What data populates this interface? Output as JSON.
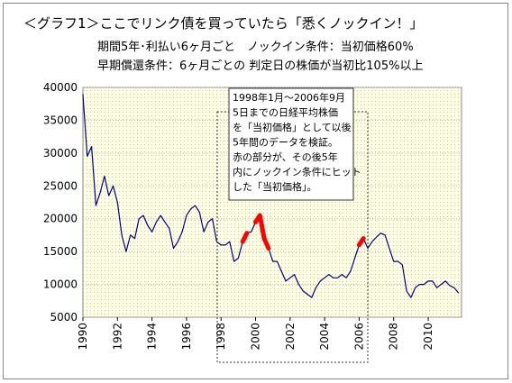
{
  "chart_data": {
    "type": "line",
    "title": "＜グラフ1＞ここでリンク債を買っていたら「悉くノックイン！」",
    "subtitle": [
      "期間5年･利払い6ヶ月ごと　ノックイン条件：当初価格60%",
      "早期償還条件：6ヶ月ごとの 判定日の株価が当初比105%以上"
    ],
    "annotation": [
      "1998年1月～2006年9月",
      "5日までの日経平均株価",
      "を「当初価格」として以後",
      "5年間のデータを検証。",
      "赤の部分が、その後5年",
      "内にノックイン条件にヒット",
      "した「当初価格」。"
    ],
    "x": [
      1990.0,
      1990.25,
      1990.5,
      1990.75,
      1991.0,
      1991.25,
      1991.5,
      1991.75,
      1992.0,
      1992.25,
      1992.5,
      1992.75,
      1993.0,
      1993.25,
      1993.5,
      1993.75,
      1994.0,
      1994.25,
      1994.5,
      1994.75,
      1995.0,
      1995.25,
      1995.5,
      1995.75,
      1996.0,
      1996.25,
      1996.5,
      1996.75,
      1997.0,
      1997.25,
      1997.5,
      1997.75,
      1998.0,
      1998.25,
      1998.5,
      1998.75,
      1999.0,
      1999.25,
      1999.5,
      1999.75,
      2000.0,
      2000.25,
      2000.5,
      2000.75,
      2001.0,
      2001.25,
      2001.5,
      2001.75,
      2002.0,
      2002.25,
      2002.5,
      2002.75,
      2003.0,
      2003.25,
      2003.5,
      2003.75,
      2004.0,
      2004.25,
      2004.5,
      2004.75,
      2005.0,
      2005.25,
      2005.5,
      2005.75,
      2006.0,
      2006.25,
      2006.5,
      2006.75,
      2007.0,
      2007.25,
      2007.5,
      2007.75,
      2008.0,
      2008.25,
      2008.5,
      2008.75,
      2009.0,
      2009.25,
      2009.5,
      2009.75,
      2010.0,
      2010.25,
      2010.5,
      2010.75,
      2011.0,
      2011.25,
      2011.5,
      2011.75
    ],
    "series": [
      {
        "color": "#000080",
        "values": [
          38900,
          29500,
          31000,
          22000,
          24000,
          26500,
          23500,
          25000,
          22500,
          17500,
          15000,
          17500,
          17000,
          20000,
          20500,
          19000,
          18000,
          19500,
          20500,
          19500,
          18500,
          15500,
          16500,
          18000,
          20500,
          21500,
          22000,
          21000,
          18000,
          19500,
          20000,
          16500,
          16000,
          16000,
          16500,
          13500,
          14000,
          16500,
          17800,
          18000,
          19500,
          20500,
          17000,
          15500,
          13500,
          13500,
          12000,
          10500,
          11000,
          11500,
          10000,
          9000,
          8500,
          8000,
          9500,
          10500,
          11000,
          11500,
          11000,
          11000,
          11500,
          11000,
          12000,
          14000,
          16000,
          17000,
          15500,
          16500,
          17200,
          17800,
          17500,
          15500,
          13500,
          13500,
          13000,
          9000,
          8000,
          9500,
          10000,
          10000,
          10500,
          10500,
          9500,
          10000,
          10500,
          9800,
          9500,
          8700
        ]
      },
      {
        "color": "#ff0000",
        "values": [
          null,
          null,
          null,
          null,
          null,
          null,
          null,
          null,
          null,
          null,
          null,
          null,
          null,
          null,
          null,
          null,
          null,
          null,
          null,
          null,
          null,
          null,
          null,
          null,
          null,
          null,
          null,
          null,
          null,
          null,
          null,
          null,
          null,
          null,
          null,
          null,
          null,
          16500,
          17800,
          null,
          19500,
          20500,
          17000,
          15500,
          null,
          null,
          null,
          null,
          null,
          null,
          null,
          null,
          null,
          null,
          null,
          null,
          null,
          null,
          null,
          null,
          null,
          null,
          null,
          null,
          16000,
          17000,
          null,
          null,
          null,
          null,
          null,
          null,
          null,
          null,
          null,
          null,
          null,
          null,
          null,
          null,
          null,
          null,
          null,
          null,
          null,
          null,
          null,
          null
        ]
      }
    ],
    "xlim": [
      1990,
      2011.93
    ],
    "xticks": [
      1990,
      1992,
      1994,
      1996,
      1998,
      2000,
      2002,
      2004,
      2006,
      2008,
      2010
    ],
    "ylim": [
      5000,
      40000
    ],
    "yticks": [
      5000,
      10000,
      15000,
      20000,
      25000,
      30000,
      35000,
      40000
    ],
    "grid": true
  }
}
